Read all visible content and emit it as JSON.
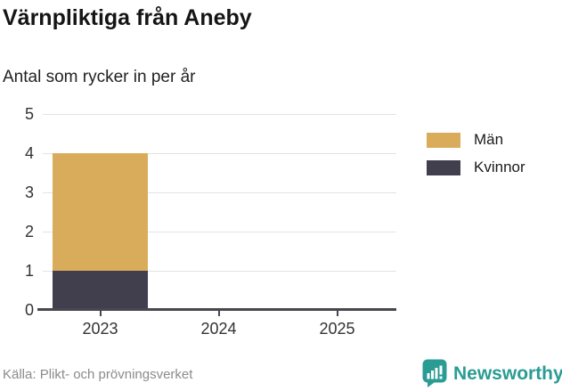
{
  "header": {
    "title": "Värnpliktiga från Aneby",
    "subtitle": "Antal som rycker in per år"
  },
  "footer": {
    "source": "Källa: Plikt- och prövningsverket",
    "brand": "Newsworthy"
  },
  "colors": {
    "men": "#d9ac5c",
    "women": "#413f4e",
    "brand_teal": "#2a9c94",
    "gridline": "#e3e3e3",
    "axis": "#48464f",
    "tick_text": "#333333",
    "muted_text": "#8b8b8b"
  },
  "chart_data": {
    "type": "bar",
    "stacked": true,
    "title": "Värnpliktiga från Aneby",
    "subtitle": "Antal som rycker in per år",
    "categories": [
      "2023",
      "2024",
      "2025"
    ],
    "series": [
      {
        "name": "Män",
        "color": "#d9ac5c",
        "values": [
          3,
          0,
          0
        ]
      },
      {
        "name": "Kvinnor",
        "color": "#413f4e",
        "values": [
          1,
          0,
          0
        ]
      }
    ],
    "stack_order_bottom_to_top": [
      "Kvinnor",
      "Män"
    ],
    "totals": [
      4,
      0,
      0
    ],
    "ylim": [
      0,
      5
    ],
    "ytick_step": 1,
    "yticks": [
      0,
      1,
      2,
      3,
      4,
      5
    ],
    "grid": "horizontal",
    "legend_position": "right",
    "bar_width_fraction": 0.8
  }
}
